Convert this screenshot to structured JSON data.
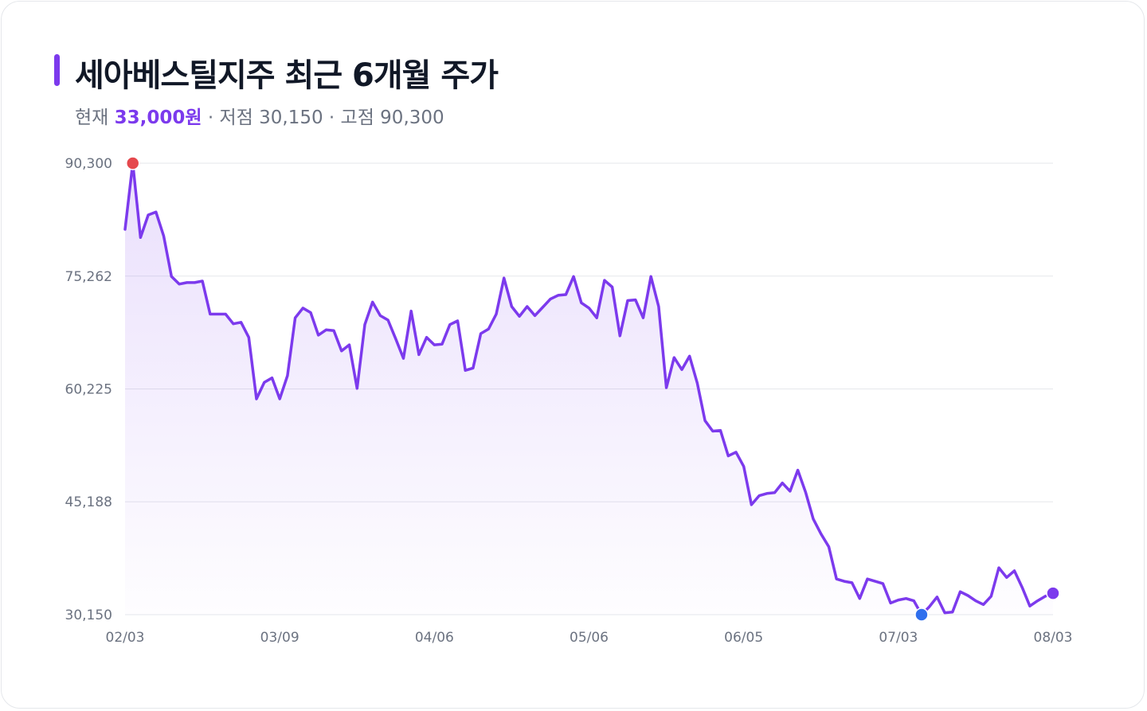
{
  "header": {
    "title": "세아베스틸지주 최근 6개월 주가",
    "current_label": "현재",
    "current_value": "33,000원",
    "sep1": " · ",
    "low_text": "저점 30,150",
    "sep2": " · ",
    "high_text": "고점 90,300"
  },
  "colors": {
    "line": "#7c3aed",
    "high_marker": "#e5484d",
    "low_marker": "#2f6fed",
    "last_marker": "#7c3aed",
    "grid": "#e5e7eb",
    "tick_text": "#6b7280"
  },
  "chart_data": {
    "type": "area",
    "title": "세아베스틸지주 최근 6개월 주가",
    "xlabel": "",
    "ylabel": "",
    "ylim": [
      30150,
      90300
    ],
    "yticks": [
      30150,
      45188,
      60225,
      75262,
      90300
    ],
    "ytick_labels": [
      "30,150",
      "45,188",
      "60,225",
      "75,262",
      "90,300"
    ],
    "xtick_labels": [
      "02/03",
      "03/09",
      "04/06",
      "05/06",
      "06/05",
      "07/03",
      "08/03"
    ],
    "xtick_index": [
      0,
      20,
      40,
      60,
      80,
      100,
      120
    ],
    "grid": true,
    "legend": "none",
    "markers": {
      "high": {
        "index": 1,
        "value": 90300
      },
      "low": {
        "index": 103,
        "value": 30150
      },
      "last": {
        "index": 120,
        "value": 33000
      }
    },
    "series": [
      {
        "values": [
          81500,
          90300,
          80400,
          83400,
          83800,
          80600,
          75200,
          74200,
          74400,
          74400,
          74600,
          70200,
          70200,
          70200,
          68900,
          69100,
          67100,
          58900,
          61100,
          61700,
          58900,
          62000,
          69700,
          71000,
          70400,
          67400,
          68100,
          68000,
          65300,
          66100,
          60300,
          68800,
          71800,
          70000,
          69400,
          66900,
          64300,
          70600,
          64800,
          67100,
          66100,
          66200,
          68800,
          69300,
          62700,
          63000,
          67600,
          68200,
          70200,
          75000,
          71200,
          69900,
          71200,
          70000,
          71100,
          72200,
          72700,
          72800,
          75200,
          71700,
          71000,
          69700,
          74700,
          73800,
          67300,
          72000,
          72100,
          69700,
          75200,
          71200,
          60400,
          64400,
          62800,
          64600,
          61000,
          56000,
          54600,
          54700,
          51300,
          51800,
          49900,
          44800,
          46000,
          46300,
          46400,
          47700,
          46600,
          49400,
          46500,
          42900,
          40900,
          39200,
          34900,
          34600,
          34400,
          32300,
          34900,
          34600,
          34300,
          31700,
          32100,
          32300,
          32000,
          30150,
          31200,
          32500,
          30400,
          30500,
          33200,
          32700,
          32000,
          31500,
          32600,
          36400,
          35100,
          36000,
          33800,
          31300,
          32000,
          32600,
          33000
        ]
      }
    ]
  }
}
